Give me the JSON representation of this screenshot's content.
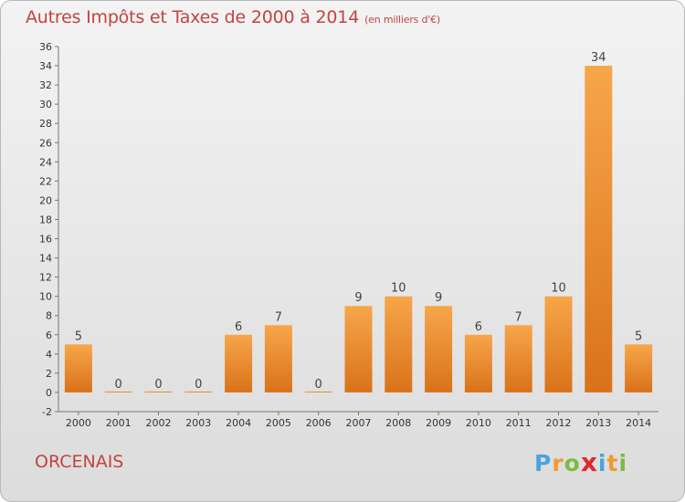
{
  "title": "Autres Impôts et Taxes de 2000 à 2014",
  "subtitle": "(en milliers d'€)",
  "commune": "ORCENAIS",
  "logo": {
    "letters": [
      "P",
      "r",
      "o",
      "x",
      "i",
      "t",
      "i"
    ],
    "colors": [
      "#4aa3df",
      "#f29a2e",
      "#7dbb42",
      "#e3262d",
      "#4aa3df",
      "#f29a2e",
      "#7dbb42"
    ]
  },
  "chart_data": {
    "type": "bar",
    "categories": [
      "2000",
      "2001",
      "2002",
      "2003",
      "2004",
      "2005",
      "2006",
      "2007",
      "2008",
      "2009",
      "2010",
      "2011",
      "2012",
      "2013",
      "2014"
    ],
    "values": [
      5,
      0,
      0,
      0,
      6,
      7,
      0,
      9,
      10,
      9,
      6,
      7,
      10,
      34,
      5
    ],
    "ylim": [
      -2,
      36
    ],
    "yticks": [
      -2,
      0,
      2,
      4,
      6,
      8,
      10,
      12,
      14,
      16,
      18,
      20,
      22,
      24,
      26,
      28,
      30,
      32,
      34,
      36
    ],
    "grid": false,
    "bar_color_top": "#f7a64a",
    "bar_color_bottom": "#d9721a"
  }
}
